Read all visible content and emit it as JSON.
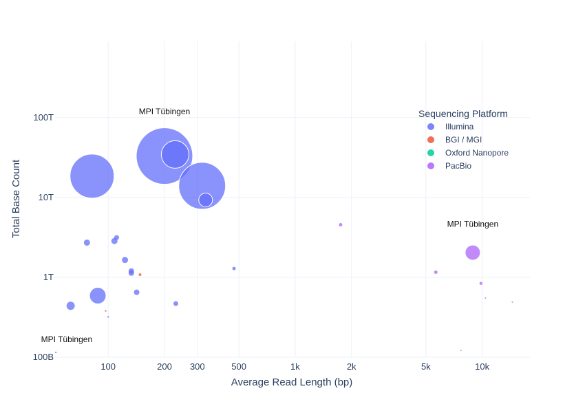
{
  "chart_data": {
    "type": "scatter",
    "title": "",
    "xlabel": "Average Read Length (bp)",
    "ylabel": "Total Base Count",
    "x_scale": "log",
    "y_scale": "log",
    "xlim": [
      52,
      18000
    ],
    "ylim": [
      100000000000,
      900000000000000
    ],
    "x_ticks": [
      {
        "value": 100,
        "label": "100"
      },
      {
        "value": 200,
        "label": "200"
      },
      {
        "value": 300,
        "label": "300"
      },
      {
        "value": 500,
        "label": "500"
      },
      {
        "value": 1000,
        "label": "1k"
      },
      {
        "value": 2000,
        "label": "2k"
      },
      {
        "value": 5000,
        "label": "5k"
      },
      {
        "value": 10000,
        "label": "10k"
      }
    ],
    "y_ticks": [
      {
        "value": 100000000000,
        "label": "100B"
      },
      {
        "value": 1000000000000,
        "label": "1T"
      },
      {
        "value": 10000000000000,
        "label": "10T"
      },
      {
        "value": 100000000000000,
        "label": "100T"
      }
    ],
    "grid": true,
    "legend": {
      "title": "Sequencing Platform",
      "position": "top-right"
    },
    "series": [
      {
        "name": "Illumina",
        "color": "#636efa",
        "points": [
          {
            "x": 82,
            "y": 18500000000000,
            "r": 32
          },
          {
            "x": 200,
            "y": 33000000000000,
            "r": 41
          },
          {
            "x": 228,
            "y": 34500000000000,
            "r": 20
          },
          {
            "x": 318,
            "y": 14000000000000,
            "r": 34
          },
          {
            "x": 332,
            "y": 9300000000000,
            "r": 10
          },
          {
            "x": 88,
            "y": 590000000000,
            "r": 12
          },
          {
            "x": 63,
            "y": 440000000000,
            "r": 6
          },
          {
            "x": 77,
            "y": 2720000000000,
            "r": 4.5
          },
          {
            "x": 108,
            "y": 2850000000000,
            "r": 4.5
          },
          {
            "x": 111,
            "y": 3150000000000,
            "r": 3.5
          },
          {
            "x": 123,
            "y": 1650000000000,
            "r": 4.5
          },
          {
            "x": 133,
            "y": 1200000000000,
            "r": 4
          },
          {
            "x": 133,
            "y": 1130000000000,
            "r": 4
          },
          {
            "x": 142,
            "y": 650000000000,
            "r": 4
          },
          {
            "x": 230,
            "y": 470000000000,
            "r": 3.5
          },
          {
            "x": 471,
            "y": 1290000000000,
            "r": 2.5
          },
          {
            "x": 100,
            "y": 320000000000,
            "r": 1.2
          },
          {
            "x": 52.5,
            "y": 115000000000,
            "r": 1.2
          }
        ]
      },
      {
        "name": "BGI / MGI",
        "color": "#ef553b",
        "points": [
          {
            "x": 148,
            "y": 1080000000000,
            "r": 2
          },
          {
            "x": 97,
            "y": 380000000000,
            "r": 1.2
          }
        ]
      },
      {
        "name": "Oxford Nanopore",
        "color": "#00cc96",
        "points": []
      },
      {
        "name": "PacBio",
        "color": "#ab63fa",
        "points": [
          {
            "x": 8900,
            "y": 2040000000000,
            "r": 11
          },
          {
            "x": 1750,
            "y": 4550000000000,
            "r": 2.5
          },
          {
            "x": 5650,
            "y": 1160000000000,
            "r": 2.5
          },
          {
            "x": 9850,
            "y": 840000000000,
            "r": 2.2
          },
          {
            "x": 10400,
            "y": 550000000000,
            "r": 1
          },
          {
            "x": 14500,
            "y": 490000000000,
            "r": 1
          },
          {
            "x": 7700,
            "y": 122000000000,
            "r": 1
          }
        ]
      }
    ],
    "annotations": [
      {
        "text": "MPI Tübingen",
        "x": 200,
        "y": 110000000000000
      },
      {
        "text": "MPI Tübingen",
        "x": 8900,
        "y": 4300000000000
      },
      {
        "text": "MPI Tübingen",
        "x": 60,
        "y": 155000000000
      }
    ]
  }
}
